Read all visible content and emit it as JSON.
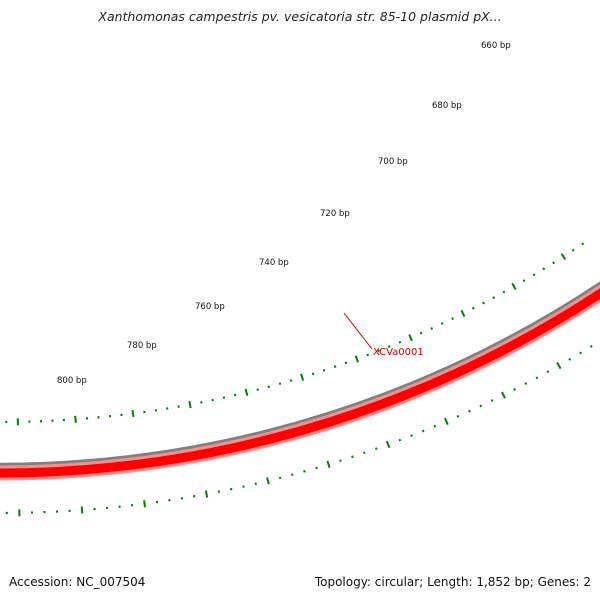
{
  "title": "Xanthomonas campestris pv. vesicatoria str. 85-10 plasmid pX...",
  "footer": {
    "accession": "Accession: NC_007504",
    "summary": "Topology: circular; Length: 1,852 bp; Genes: 2"
  },
  "ruler": {
    "unit": "bp",
    "labels": [
      "660 bp",
      "680 bp",
      "700 bp",
      "720 bp",
      "740 bp",
      "760 bp",
      "780 bp",
      "800 bp"
    ]
  },
  "genes": [
    {
      "name": "XCVa0001",
      "color": "#ff0000"
    }
  ],
  "colors": {
    "backbone": "#808080",
    "gene_fill": "#ff0000",
    "gene_edge": "#ff8c8c",
    "tick": "#008000",
    "label": "#cc0000",
    "text": "#111111"
  }
}
